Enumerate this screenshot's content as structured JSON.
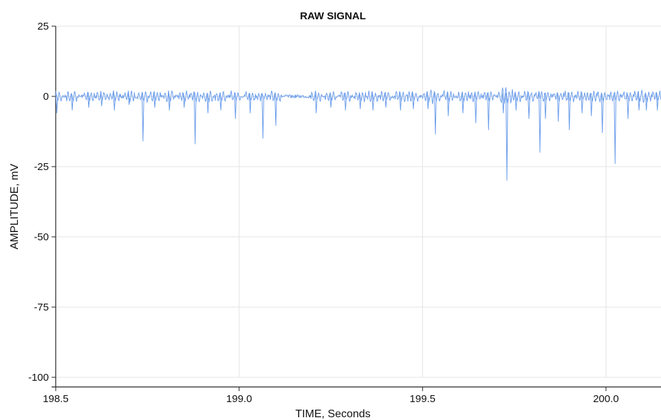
{
  "chart_data": {
    "type": "line",
    "title": "RAW SIGNAL",
    "xlabel": "TIME, Seconds",
    "ylabel": "AMPLITUDE, mV",
    "xlim": [
      198.5,
      200.15
    ],
    "ylim": [
      -100,
      25
    ],
    "x_ticks": [
      198.5,
      199.0,
      199.5,
      200.0
    ],
    "x_tick_labels": [
      "198.5",
      "199.0",
      "199.5",
      "200.0"
    ],
    "y_ticks": [
      25,
      0,
      -25,
      -50,
      -75,
      -100
    ],
    "y_tick_labels": [
      "25",
      "0",
      "-25",
      "-50",
      "-75",
      "-100"
    ],
    "grid": true,
    "legend": "none",
    "line_color": "#6d9eeb",
    "baseline": 0,
    "noise_amplitude": 0.6,
    "spikes": {
      "x": [
        198.503,
        198.545,
        198.59,
        198.625,
        198.66,
        198.7,
        198.738,
        198.77,
        198.81,
        198.85,
        198.88,
        198.915,
        198.95,
        198.99,
        199.03,
        199.065,
        199.1,
        199.21,
        199.25,
        199.29,
        199.33,
        199.365,
        199.4,
        199.44,
        199.475,
        199.515,
        199.535,
        199.57,
        199.61,
        199.645,
        199.68,
        199.72,
        199.73,
        199.755,
        199.79,
        199.82,
        199.835,
        199.87,
        199.9,
        199.935,
        199.96,
        199.99,
        200.025,
        200.06,
        200.09,
        200.11,
        200.14
      ],
      "y": [
        -6,
        -5,
        -4,
        -3.5,
        -5,
        -3,
        -16,
        -4,
        -5,
        -4,
        -17,
        -6,
        -5,
        -8,
        -6,
        -15,
        -10.5,
        -6,
        -4,
        -5,
        -4.5,
        -5,
        -4,
        -5,
        -4.5,
        -4.5,
        -13.5,
        -7,
        -6,
        -9.5,
        -12,
        -6,
        -30,
        -5,
        -8,
        -20,
        -8,
        -9,
        -12,
        -6,
        -7,
        -13,
        -24,
        -8,
        -5,
        -5,
        -5
      ]
    }
  }
}
